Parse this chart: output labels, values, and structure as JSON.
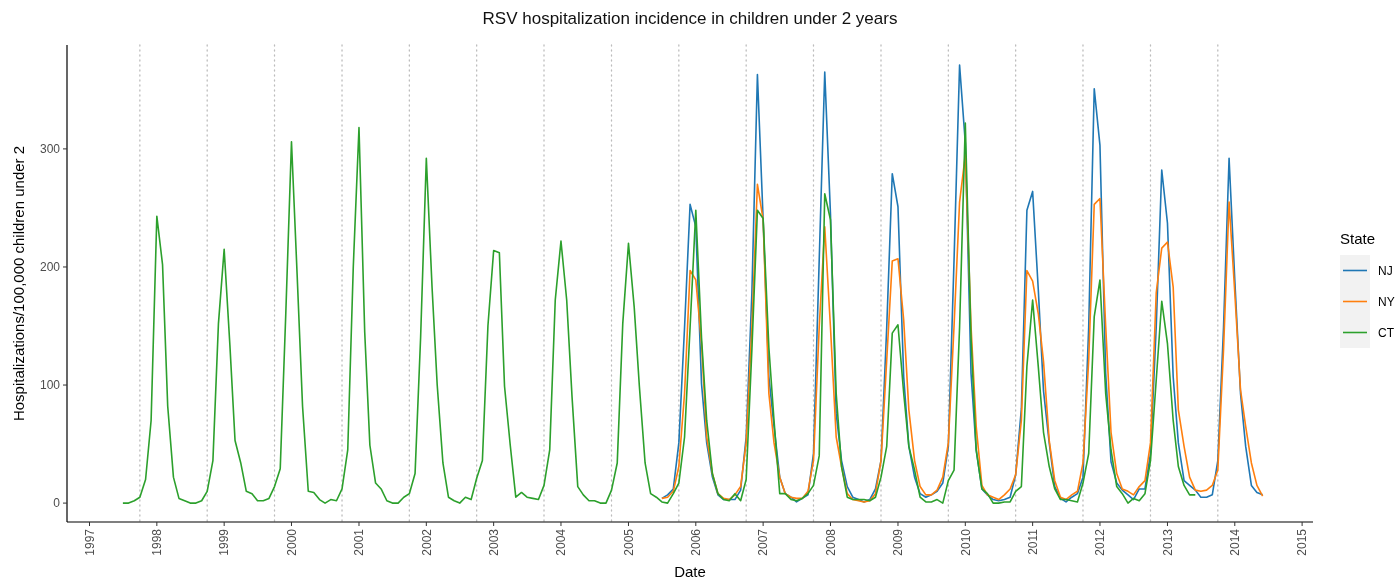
{
  "chart_data": {
    "type": "line",
    "title": "RSV hospitalization incidence in children under 2 years",
    "xlabel": "Date",
    "ylabel": "Hospitalizations/100,000 children under 2",
    "legend_title": "State",
    "legend": "right",
    "xlim": [
      "1996-09",
      "2015-03"
    ],
    "xticks": [
      "1997",
      "1998",
      "1999",
      "2000",
      "2001",
      "2002",
      "2003",
      "2004",
      "2005",
      "2006",
      "2007",
      "2008",
      "2009",
      "2010",
      "2011",
      "2012",
      "2013",
      "2014",
      "2015"
    ],
    "ylim": [
      -16,
      388
    ],
    "yticks": [
      0,
      100,
      200,
      300
    ],
    "ref_lines": [
      {
        "axis": "x",
        "value": "1997-10",
        "color": "#bdbdbd",
        "line_style": "dotted"
      },
      {
        "axis": "x",
        "value": "1998-10",
        "color": "#bdbdbd",
        "line_style": "dotted"
      },
      {
        "axis": "x",
        "value": "1999-10",
        "color": "#bdbdbd",
        "line_style": "dotted"
      },
      {
        "axis": "x",
        "value": "2000-10",
        "color": "#bdbdbd",
        "line_style": "dotted"
      },
      {
        "axis": "x",
        "value": "2001-10",
        "color": "#bdbdbd",
        "line_style": "dotted"
      },
      {
        "axis": "x",
        "value": "2002-10",
        "color": "#bdbdbd",
        "line_style": "dotted"
      },
      {
        "axis": "x",
        "value": "2003-10",
        "color": "#bdbdbd",
        "line_style": "dotted"
      },
      {
        "axis": "x",
        "value": "2004-10",
        "color": "#bdbdbd",
        "line_style": "dotted"
      },
      {
        "axis": "x",
        "value": "2005-10",
        "color": "#bdbdbd",
        "line_style": "dotted"
      },
      {
        "axis": "x",
        "value": "2006-10",
        "color": "#bdbdbd",
        "line_style": "dotted"
      },
      {
        "axis": "x",
        "value": "2007-10",
        "color": "#bdbdbd",
        "line_style": "dotted"
      },
      {
        "axis": "x",
        "value": "2008-10",
        "color": "#bdbdbd",
        "line_style": "dotted"
      },
      {
        "axis": "x",
        "value": "2009-10",
        "color": "#bdbdbd",
        "line_style": "dotted"
      },
      {
        "axis": "x",
        "value": "2010-10",
        "color": "#bdbdbd",
        "line_style": "dotted"
      },
      {
        "axis": "x",
        "value": "2011-10",
        "color": "#bdbdbd",
        "line_style": "dotted"
      },
      {
        "axis": "x",
        "value": "2012-10",
        "color": "#bdbdbd",
        "line_style": "dotted"
      },
      {
        "axis": "x",
        "value": "2013-10",
        "color": "#bdbdbd",
        "line_style": "dotted"
      }
    ],
    "series": [
      {
        "name": "NJ",
        "color": "#1f77b4",
        "x": [
          "2005-07",
          "2005-08",
          "2005-09",
          "2005-10",
          "2005-11",
          "2005-12",
          "2006-01",
          "2006-02",
          "2006-03",
          "2006-04",
          "2006-05",
          "2006-06",
          "2006-07",
          "2006-08",
          "2006-09",
          "2006-10",
          "2006-11",
          "2006-12",
          "2007-01",
          "2007-02",
          "2007-03",
          "2007-04",
          "2007-05",
          "2007-06",
          "2007-07",
          "2007-08",
          "2007-09",
          "2007-10",
          "2007-11",
          "2007-12",
          "2008-01",
          "2008-02",
          "2008-03",
          "2008-04",
          "2008-05",
          "2008-06",
          "2008-07",
          "2008-08",
          "2008-09",
          "2008-10",
          "2008-11",
          "2008-12",
          "2009-01",
          "2009-02",
          "2009-03",
          "2009-04",
          "2009-05",
          "2009-06",
          "2009-07",
          "2009-08",
          "2009-09",
          "2009-10",
          "2009-11",
          "2009-12",
          "2010-01",
          "2010-02",
          "2010-03",
          "2010-04",
          "2010-05",
          "2010-06",
          "2010-07",
          "2010-08",
          "2010-09",
          "2010-10",
          "2010-11",
          "2010-12",
          "2011-01",
          "2011-02",
          "2011-03",
          "2011-04",
          "2011-05",
          "2011-06",
          "2011-07",
          "2011-08",
          "2011-09",
          "2011-10",
          "2011-11",
          "2011-12",
          "2012-01",
          "2012-02",
          "2012-03",
          "2012-04",
          "2012-05",
          "2012-06",
          "2012-07",
          "2012-08",
          "2012-09",
          "2012-10",
          "2012-11",
          "2012-12",
          "2013-01",
          "2013-02",
          "2013-03",
          "2013-04",
          "2013-05",
          "2013-06",
          "2013-07",
          "2013-08",
          "2013-09",
          "2013-10",
          "2013-11",
          "2013-12",
          "2014-01",
          "2014-02",
          "2014-03",
          "2014-04",
          "2014-05",
          "2014-06"
        ],
        "values": [
          4,
          7,
          12,
          51,
          149,
          253,
          234,
          101,
          51,
          22,
          7,
          3,
          3,
          3,
          11,
          56,
          178,
          363,
          240,
          107,
          65,
          22,
          8,
          5,
          1,
          4,
          7,
          42,
          206,
          365,
          245,
          76,
          36,
          14,
          5,
          3,
          1,
          3,
          12,
          36,
          149,
          279,
          251,
          107,
          48,
          22,
          8,
          5,
          7,
          10,
          17,
          48,
          206,
          371,
          305,
          110,
          45,
          12,
          7,
          3,
          2,
          3,
          5,
          24,
          80,
          248,
          264,
          180,
          95,
          51,
          14,
          4,
          1,
          5,
          8,
          22,
          149,
          351,
          303,
          110,
          35,
          17,
          11,
          7,
          3,
          12,
          12,
          42,
          149,
          282,
          237,
          107,
          51,
          19,
          15,
          11,
          5,
          5,
          7,
          36,
          149,
          292,
          189,
          93,
          48,
          15,
          9,
          7
        ]
      },
      {
        "name": "NY",
        "color": "#ff7f0e",
        "x": [
          "2005-07",
          "2005-08",
          "2005-09",
          "2005-10",
          "2005-11",
          "2005-12",
          "2006-01",
          "2006-02",
          "2006-03",
          "2006-04",
          "2006-05",
          "2006-06",
          "2006-07",
          "2006-08",
          "2006-09",
          "2006-10",
          "2006-11",
          "2006-12",
          "2007-01",
          "2007-02",
          "2007-03",
          "2007-04",
          "2007-05",
          "2007-06",
          "2007-07",
          "2007-08",
          "2007-09",
          "2007-10",
          "2007-11",
          "2007-12",
          "2008-01",
          "2008-02",
          "2008-03",
          "2008-04",
          "2008-05",
          "2008-06",
          "2008-07",
          "2008-08",
          "2008-09",
          "2008-10",
          "2008-11",
          "2008-12",
          "2009-01",
          "2009-02",
          "2009-03",
          "2009-04",
          "2009-05",
          "2009-06",
          "2009-07",
          "2009-08",
          "2009-09",
          "2009-10",
          "2009-11",
          "2009-12",
          "2010-01",
          "2010-02",
          "2010-03",
          "2010-04",
          "2010-05",
          "2010-06",
          "2010-07",
          "2010-08",
          "2010-09",
          "2010-10",
          "2010-11",
          "2010-12",
          "2011-01",
          "2011-02",
          "2011-03",
          "2011-04",
          "2011-05",
          "2011-06",
          "2011-07",
          "2011-08",
          "2011-09",
          "2011-10",
          "2011-11",
          "2011-12",
          "2012-01",
          "2012-02",
          "2012-03",
          "2012-04",
          "2012-05",
          "2012-06",
          "2012-07",
          "2012-08",
          "2012-09",
          "2012-10",
          "2012-11",
          "2012-12",
          "2013-01",
          "2013-02",
          "2013-03",
          "2013-04",
          "2013-05",
          "2013-06",
          "2013-07",
          "2013-08",
          "2013-09",
          "2013-10",
          "2013-11",
          "2013-12",
          "2014-01",
          "2014-02",
          "2014-03",
          "2014-04",
          "2014-05",
          "2014-06"
        ],
        "values": [
          4,
          5,
          10,
          31,
          93,
          197,
          189,
          135,
          56,
          25,
          8,
          4,
          3,
          7,
          14,
          51,
          149,
          270,
          240,
          93,
          51,
          22,
          8,
          5,
          4,
          4,
          10,
          36,
          149,
          234,
          149,
          56,
          31,
          8,
          3,
          2,
          1,
          2,
          8,
          36,
          121,
          205,
          207,
          155,
          79,
          36,
          14,
          7,
          7,
          11,
          22,
          51,
          150,
          255,
          295,
          150,
          65,
          15,
          7,
          5,
          3,
          7,
          12,
          24,
          70,
          197,
          188,
          160,
          120,
          53,
          19,
          5,
          3,
          7,
          10,
          34,
          121,
          253,
          258,
          150,
          60,
          25,
          12,
          10,
          7,
          14,
          19,
          51,
          178,
          216,
          221,
          183,
          79,
          48,
          22,
          11,
          10,
          11,
          15,
          28,
          130,
          255,
          178,
          96,
          65,
          34,
          15,
          6
        ]
      },
      {
        "name": "CT",
        "color": "#2ca02c",
        "x": [
          "1997-07",
          "1997-08",
          "1997-09",
          "1997-10",
          "1997-11",
          "1997-12",
          "1998-01",
          "1998-02",
          "1998-03",
          "1998-04",
          "1998-05",
          "1998-06",
          "1998-07",
          "1998-08",
          "1998-09",
          "1998-10",
          "1998-11",
          "1998-12",
          "1999-01",
          "1999-02",
          "1999-03",
          "1999-04",
          "1999-05",
          "1999-06",
          "1999-07",
          "1999-08",
          "1999-09",
          "1999-10",
          "1999-11",
          "1999-12",
          "2000-01",
          "2000-02",
          "2000-03",
          "2000-04",
          "2000-05",
          "2000-06",
          "2000-07",
          "2000-08",
          "2000-09",
          "2000-10",
          "2000-11",
          "2000-12",
          "2001-01",
          "2001-02",
          "2001-03",
          "2001-04",
          "2001-05",
          "2001-06",
          "2001-07",
          "2001-08",
          "2001-09",
          "2001-10",
          "2001-11",
          "2001-12",
          "2002-01",
          "2002-02",
          "2002-03",
          "2002-04",
          "2002-05",
          "2002-06",
          "2002-07",
          "2002-08",
          "2002-09",
          "2002-10",
          "2002-11",
          "2002-12",
          "2003-01",
          "2003-02",
          "2003-03",
          "2003-04",
          "2003-05",
          "2003-06",
          "2003-07",
          "2003-08",
          "2003-09",
          "2003-10",
          "2003-11",
          "2003-12",
          "2004-01",
          "2004-02",
          "2004-03",
          "2004-04",
          "2004-05",
          "2004-06",
          "2004-07",
          "2004-08",
          "2004-09",
          "2004-10",
          "2004-11",
          "2004-12",
          "2005-01",
          "2005-02",
          "2005-03",
          "2005-04",
          "2005-05",
          "2005-06",
          "2005-07",
          "2005-08",
          "2005-09",
          "2005-10",
          "2005-11",
          "2005-12",
          "2006-01",
          "2006-02",
          "2006-03",
          "2006-04",
          "2006-05",
          "2006-06",
          "2006-07",
          "2006-08",
          "2006-09",
          "2006-10",
          "2006-11",
          "2006-12",
          "2007-01",
          "2007-02",
          "2007-03",
          "2007-04",
          "2007-05",
          "2007-06",
          "2007-07",
          "2007-08",
          "2007-09",
          "2007-10",
          "2007-11",
          "2007-12",
          "2008-01",
          "2008-02",
          "2008-03",
          "2008-04",
          "2008-05",
          "2008-06",
          "2008-07",
          "2008-08",
          "2008-09",
          "2008-10",
          "2008-11",
          "2008-12",
          "2009-01",
          "2009-02",
          "2009-03",
          "2009-04",
          "2009-05",
          "2009-06",
          "2009-07",
          "2009-08",
          "2009-09",
          "2009-10",
          "2009-11",
          "2009-12",
          "2010-01",
          "2010-02",
          "2010-03",
          "2010-04",
          "2010-05",
          "2010-06",
          "2010-07",
          "2010-08",
          "2010-09",
          "2010-10",
          "2010-11",
          "2010-12",
          "2011-01",
          "2011-02",
          "2011-03",
          "2011-04",
          "2011-05",
          "2011-06",
          "2011-07",
          "2011-08",
          "2011-09",
          "2011-10",
          "2011-11",
          "2011-12",
          "2012-01",
          "2012-02",
          "2012-03",
          "2012-04",
          "2012-05",
          "2012-06",
          "2012-07",
          "2012-08",
          "2012-09",
          "2012-10",
          "2012-11",
          "2012-12",
          "2013-01",
          "2013-02",
          "2013-03",
          "2013-04",
          "2013-05",
          "2013-06"
        ],
        "values": [
          0,
          0,
          2,
          5,
          20,
          70,
          243,
          202,
          82,
          22,
          4,
          2,
          0,
          0,
          2,
          10,
          36,
          152,
          215,
          134,
          53,
          34,
          10,
          8,
          2,
          2,
          4,
          14,
          29,
          160,
          306,
          192,
          82,
          10,
          9,
          3,
          0,
          3,
          2,
          12,
          45,
          200,
          318,
          145,
          49,
          17,
          12,
          2,
          0,
          0,
          5,
          8,
          25,
          140,
          292,
          183,
          100,
          34,
          5,
          2,
          0,
          5,
          3,
          21,
          36,
          150,
          214,
          212,
          99,
          49,
          5,
          9,
          5,
          4,
          3,
          15,
          45,
          172,
          222,
          172,
          90,
          14,
          7,
          2,
          2,
          0,
          0,
          11,
          34,
          152,
          220,
          166,
          99,
          34,
          8,
          5,
          1,
          0,
          8,
          17,
          56,
          149,
          248,
          140,
          70,
          25,
          8,
          3,
          2,
          8,
          2,
          20,
          130,
          248,
          241,
          132,
          70,
          8,
          8,
          3,
          2,
          4,
          8,
          15,
          40,
          262,
          240,
          93,
          31,
          5,
          3,
          3,
          3,
          2,
          5,
          22,
          48,
          144,
          151,
          93,
          48,
          28,
          5,
          1,
          1,
          3,
          0,
          19,
          28,
          149,
          322,
          140,
          45,
          12,
          8,
          0,
          0,
          1,
          1,
          10,
          14,
          116,
          172,
          115,
          60,
          31,
          12,
          3,
          3,
          2,
          1,
          17,
          42,
          158,
          189,
          93,
          45,
          14,
          8,
          0,
          4,
          2,
          8,
          36,
          104,
          171,
          135,
          70,
          31,
          15,
          7,
          7
        ]
      }
    ]
  }
}
